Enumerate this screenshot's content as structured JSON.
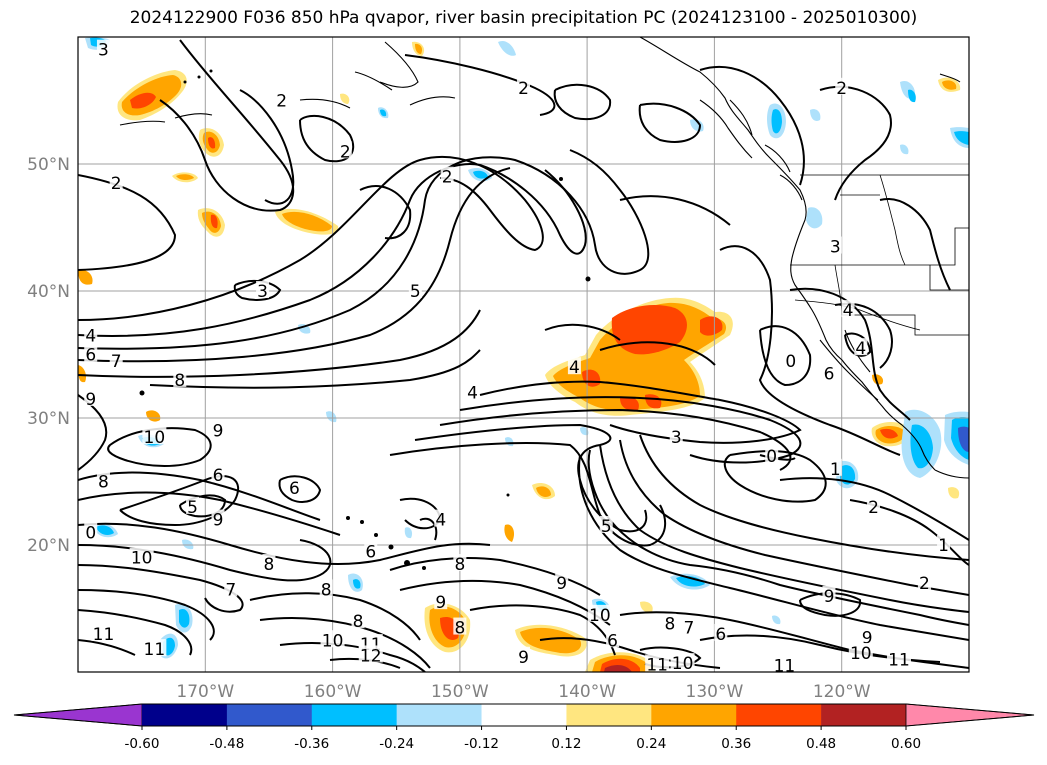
{
  "title": "2024122900 F036 850 hPa qvapor, river basin precipitation PC (2024123100 - 2025010300)",
  "lat_ticks": [
    {
      "label": "50°N",
      "lat": 50
    },
    {
      "label": "40°N",
      "lat": 40
    },
    {
      "label": "30°N",
      "lat": 30
    },
    {
      "label": "20°N",
      "lat": 20
    }
  ],
  "lon_ticks": [
    {
      "label": "170°W",
      "lon": -170
    },
    {
      "label": "160°W",
      "lon": -160
    },
    {
      "label": "150°W",
      "lon": -150
    },
    {
      "label": "140°W",
      "lon": -140
    },
    {
      "label": "130°W",
      "lon": -130
    },
    {
      "label": "120°W",
      "lon": -120
    }
  ],
  "extent": {
    "lon": [
      -180,
      -110
    ],
    "lat": [
      10,
      60
    ]
  },
  "colorbar": {
    "levels": [
      "-0.60",
      "-0.48",
      "-0.36",
      "-0.24",
      "-0.12",
      "0.12",
      "0.24",
      "0.36",
      "0.48",
      "0.60"
    ],
    "colors": [
      "#9a35d0",
      "#00008b",
      "#3159cc",
      "#00bfff",
      "#aee1fb",
      "#ffffff",
      "#ffe680",
      "#ffa500",
      "#ff4500",
      "#b22222",
      "#ff88aa"
    ]
  },
  "contour_labels": [
    {
      "text": "3",
      "lon": -178,
      "lat": 59
    },
    {
      "text": "2",
      "lon": -164,
      "lat": 55
    },
    {
      "text": "2",
      "lon": -159,
      "lat": 51
    },
    {
      "text": "2",
      "lon": -145,
      "lat": 56
    },
    {
      "text": "2",
      "lon": -120,
      "lat": 56
    },
    {
      "text": "2",
      "lon": -177,
      "lat": 48.5
    },
    {
      "text": "2",
      "lon": -151,
      "lat": 49
    },
    {
      "text": "3",
      "lon": -165.5,
      "lat": 40
    },
    {
      "text": "3",
      "lon": -120.5,
      "lat": 43.5
    },
    {
      "text": "5",
      "lon": -153.5,
      "lat": 40
    },
    {
      "text": "4",
      "lon": -179,
      "lat": 36.5
    },
    {
      "text": "6",
      "lon": -179,
      "lat": 35
    },
    {
      "text": "7",
      "lon": -177,
      "lat": 34.5
    },
    {
      "text": "8",
      "lon": -172,
      "lat": 33
    },
    {
      "text": "4",
      "lon": -149,
      "lat": 32
    },
    {
      "text": "4",
      "lon": -141,
      "lat": 34
    },
    {
      "text": "4",
      "lon": -119.5,
      "lat": 38.5
    },
    {
      "text": "4",
      "lon": -118.5,
      "lat": 35.5
    },
    {
      "text": "0",
      "lon": -124,
      "lat": 34.5
    },
    {
      "text": "6",
      "lon": -121,
      "lat": 33.5
    },
    {
      "text": "9",
      "lon": -179,
      "lat": 31.5
    },
    {
      "text": "10",
      "lon": -174,
      "lat": 28.5
    },
    {
      "text": "9",
      "lon": -169,
      "lat": 29
    },
    {
      "text": "3",
      "lon": -133,
      "lat": 28.5
    },
    {
      "text": "0",
      "lon": -125.5,
      "lat": 27
    },
    {
      "text": "1",
      "lon": -120.5,
      "lat": 26
    },
    {
      "text": "8",
      "lon": -178,
      "lat": 25
    },
    {
      "text": "6",
      "lon": -169,
      "lat": 25.5
    },
    {
      "text": "6",
      "lon": -163,
      "lat": 24.5
    },
    {
      "text": "5",
      "lon": -171,
      "lat": 23
    },
    {
      "text": "9",
      "lon": -169,
      "lat": 22
    },
    {
      "text": "4",
      "lon": -151.5,
      "lat": 22
    },
    {
      "text": "5",
      "lon": -138.5,
      "lat": 21.5
    },
    {
      "text": "2",
      "lon": -117.5,
      "lat": 23
    },
    {
      "text": "1",
      "lon": -112,
      "lat": 20
    },
    {
      "text": "0",
      "lon": -179,
      "lat": 21
    },
    {
      "text": "10",
      "lon": -175,
      "lat": 19
    },
    {
      "text": "8",
      "lon": -165,
      "lat": 18.5
    },
    {
      "text": "7",
      "lon": -168,
      "lat": 16.5
    },
    {
      "text": "8",
      "lon": -160.5,
      "lat": 16.5
    },
    {
      "text": "6",
      "lon": -157,
      "lat": 19.5
    },
    {
      "text": "8",
      "lon": -150,
      "lat": 18.5
    },
    {
      "text": "9",
      "lon": -142,
      "lat": 17
    },
    {
      "text": "2",
      "lon": -113.5,
      "lat": 17
    },
    {
      "text": "9",
      "lon": -151.5,
      "lat": 15.5
    },
    {
      "text": "9",
      "lon": -121,
      "lat": 16
    },
    {
      "text": "8",
      "lon": -158,
      "lat": 14
    },
    {
      "text": "8",
      "lon": -150,
      "lat": 13.5
    },
    {
      "text": "10",
      "lon": -139,
      "lat": 14.5
    },
    {
      "text": "8",
      "lon": -133.5,
      "lat": 13.8
    },
    {
      "text": "7",
      "lon": -132,
      "lat": 13.5
    },
    {
      "text": "6",
      "lon": -129.5,
      "lat": 13
    },
    {
      "text": "6",
      "lon": -138,
      "lat": 12.5
    },
    {
      "text": "11",
      "lon": -178,
      "lat": 13
    },
    {
      "text": "11",
      "lon": -174,
      "lat": 11.8
    },
    {
      "text": "10",
      "lon": -160,
      "lat": 12.5
    },
    {
      "text": "11",
      "lon": -157,
      "lat": 12.2
    },
    {
      "text": "12",
      "lon": -157,
      "lat": 11.3
    },
    {
      "text": "9",
      "lon": -145,
      "lat": 11.2
    },
    {
      "text": "9",
      "lon": -118,
      "lat": 12.7
    },
    {
      "text": "10",
      "lon": -118.5,
      "lat": 11.5
    },
    {
      "text": "11",
      "lon": -115.5,
      "lat": 11
    },
    {
      "text": "11",
      "lon": -134.5,
      "lat": 10.6
    },
    {
      "text": "10",
      "lon": -132.5,
      "lat": 10.7
    },
    {
      "text": "11",
      "lon": -124.5,
      "lat": 10.5
    }
  ]
}
